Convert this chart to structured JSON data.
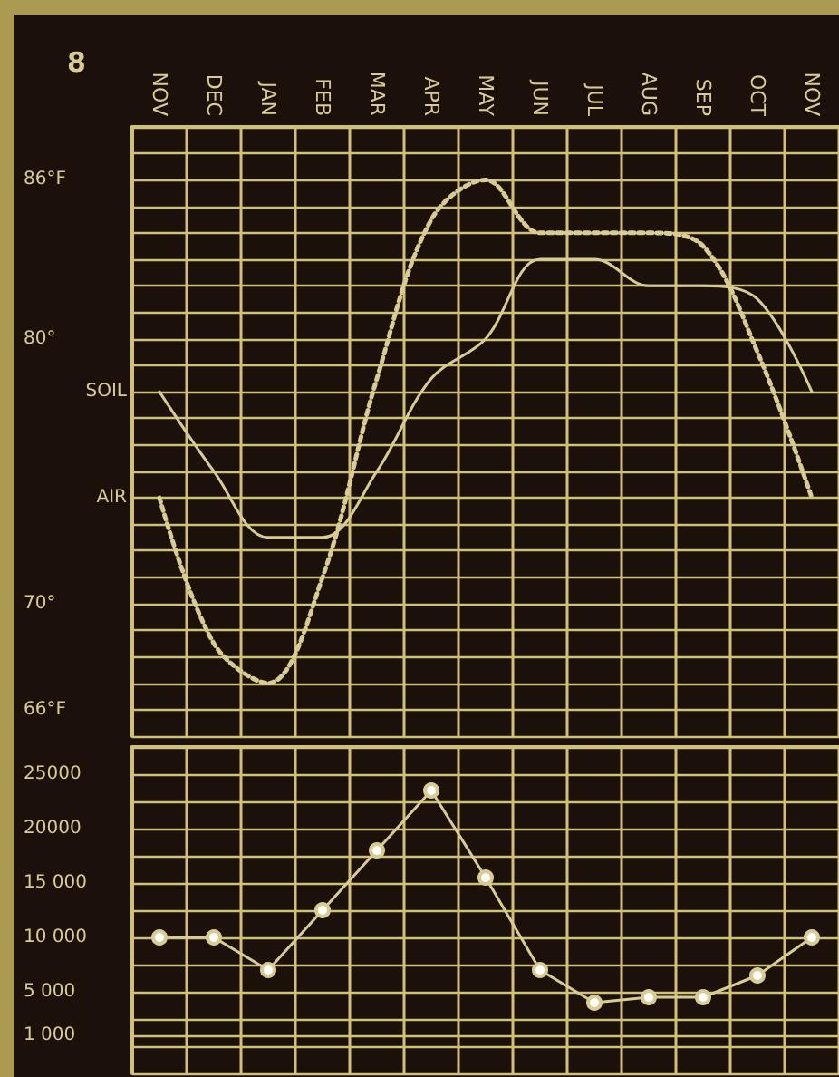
{
  "chart_data": [
    {
      "type": "line",
      "title": "8",
      "categories": [
        "NOV",
        "DEC",
        "JAN",
        "FEB",
        "MAR",
        "APR",
        "MAY",
        "JUN",
        "JUL",
        "AUG",
        "SEP",
        "OCT",
        "NOV"
      ],
      "series": [
        {
          "name": "SOIL",
          "color": "#d8cc94",
          "line_style": "solid",
          "values": [
            78,
            75,
            72.5,
            72.5,
            75,
            78.5,
            80,
            83,
            83,
            82,
            82,
            81.5,
            78
          ]
        },
        {
          "name": "AIR",
          "color": "#d8cc94",
          "line_style": "dotted",
          "values": [
            74,
            68.5,
            67,
            71,
            78.5,
            84.5,
            86,
            84,
            84,
            84,
            83.5,
            79.5,
            74
          ]
        }
      ],
      "ylim": [
        65,
        88
      ],
      "yticks": [
        {
          "value": 65,
          "label": null
        },
        {
          "value": 66,
          "label": "66°F"
        },
        {
          "value": 67,
          "label": null
        },
        {
          "value": 68,
          "label": null
        },
        {
          "value": 69,
          "label": null
        },
        {
          "value": 70,
          "label": "70°"
        },
        {
          "value": 71,
          "label": null
        },
        {
          "value": 72,
          "label": null
        },
        {
          "value": 73,
          "label": null
        },
        {
          "value": 74,
          "label": null
        },
        {
          "value": 75,
          "label": null
        },
        {
          "value": 76,
          "label": null
        },
        {
          "value": 77,
          "label": null
        },
        {
          "value": 78,
          "label": null
        },
        {
          "value": 79,
          "label": null
        },
        {
          "value": 80,
          "label": "80°"
        },
        {
          "value": 81,
          "label": null
        },
        {
          "value": 82,
          "label": null
        },
        {
          "value": 83,
          "label": null
        },
        {
          "value": 84,
          "label": null
        },
        {
          "value": 85,
          "label": null
        },
        {
          "value": 86,
          "label": "86°F"
        },
        {
          "value": 87,
          "label": null
        },
        {
          "value": 88,
          "label": null
        }
      ],
      "grid": true,
      "marker": "none"
    },
    {
      "type": "line",
      "categories": [
        null,
        null,
        null,
        null,
        null,
        null,
        null,
        null,
        null,
        null,
        null,
        null,
        null
      ],
      "values": [
        10000,
        10000,
        7000,
        12500,
        18000,
        23500,
        15500,
        7000,
        4000,
        4500,
        4500,
        6500,
        10000
      ],
      "color": "#d8cc94",
      "ylim": [
        -2500,
        27500
      ],
      "yticks": [
        {
          "value": -2500,
          "label": null
        },
        {
          "value": 0,
          "label": null
        },
        {
          "value": 1000,
          "label": "1 000"
        },
        {
          "value": 2500,
          "label": null
        },
        {
          "value": 5000,
          "label": "5 000"
        },
        {
          "value": 7500,
          "label": null
        },
        {
          "value": 10000,
          "label": "10 000"
        },
        {
          "value": 12500,
          "label": null
        },
        {
          "value": 15000,
          "label": "15 000"
        },
        {
          "value": 17500,
          "label": null
        },
        {
          "value": 20000,
          "label": "20000"
        },
        {
          "value": 22500,
          "label": null
        },
        {
          "value": 25000,
          "label": "25000"
        },
        {
          "value": 27500,
          "label": null
        }
      ],
      "grid": true,
      "marker": "circle",
      "tick_labels": "y"
    }
  ]
}
